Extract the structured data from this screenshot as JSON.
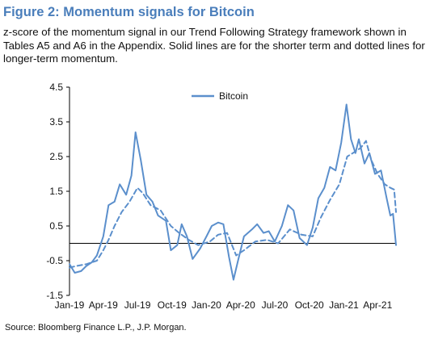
{
  "figure": {
    "title": "Figure 2: Momentum signals for Bitcoin",
    "subtitle": "z-score of the momentum signal in our Trend Following Strategy framework shown in Tables A5 and A6 in the Appendix. Solid lines are for the shorter term and dotted lines for longer-term momentum.",
    "source": "Source: Bloomberg Finance L.P., J.P. Morgan."
  },
  "colors": {
    "series": "#5b8fcc",
    "axis": "#000000",
    "title": "#4a7ebb"
  },
  "chart_data": {
    "type": "line",
    "title": "Figure 2: Momentum signals for Bitcoin",
    "xlabel": "",
    "ylabel": "",
    "ylim": [
      -1.5,
      4.5
    ],
    "yticks": [
      "4.5",
      "3.5",
      "2.5",
      "1.5",
      "0.5",
      "-0.5",
      "-1.5"
    ],
    "ytick_values": [
      4.5,
      3.5,
      2.5,
      1.5,
      0.5,
      -0.5,
      -1.5
    ],
    "xticks": [
      "Jan-19",
      "Apr-19",
      "Jul-19",
      "Oct-19",
      "Jan-20",
      "Apr-20",
      "Jul-20",
      "Oct-20",
      "Jan-21",
      "Apr-21"
    ],
    "xtick_values": [
      "2019-01-01",
      "2019-04-01",
      "2019-07-01",
      "2019-10-01",
      "2020-01-01",
      "2020-04-01",
      "2020-07-01",
      "2020-10-01",
      "2021-01-01",
      "2021-04-01"
    ],
    "xlim": [
      "2019-01-01",
      "2021-05-20"
    ],
    "grid": false,
    "legend": {
      "position": "top",
      "entries": [
        "Bitcoin"
      ]
    },
    "series": [
      {
        "name": "Bitcoin",
        "style": "solid",
        "points": [
          [
            "2019-01-01",
            -0.6
          ],
          [
            "2019-01-15",
            -0.85
          ],
          [
            "2019-02-01",
            -0.8
          ],
          [
            "2019-02-15",
            -0.65
          ],
          [
            "2019-03-01",
            -0.55
          ],
          [
            "2019-03-15",
            -0.35
          ],
          [
            "2019-04-01",
            0.2
          ],
          [
            "2019-04-15",
            1.1
          ],
          [
            "2019-05-01",
            1.2
          ],
          [
            "2019-05-15",
            1.7
          ],
          [
            "2019-06-01",
            1.4
          ],
          [
            "2019-06-15",
            1.95
          ],
          [
            "2019-06-26",
            3.2
          ],
          [
            "2019-07-10",
            2.4
          ],
          [
            "2019-07-25",
            1.4
          ],
          [
            "2019-08-10",
            1.2
          ],
          [
            "2019-08-25",
            0.8
          ],
          [
            "2019-09-15",
            0.65
          ],
          [
            "2019-09-28",
            -0.2
          ],
          [
            "2019-10-15",
            -0.05
          ],
          [
            "2019-10-27",
            0.55
          ],
          [
            "2019-11-10",
            0.2
          ],
          [
            "2019-11-25",
            -0.45
          ],
          [
            "2019-12-15",
            -0.15
          ],
          [
            "2020-01-01",
            0.2
          ],
          [
            "2020-01-15",
            0.5
          ],
          [
            "2020-02-01",
            0.6
          ],
          [
            "2020-02-15",
            0.55
          ],
          [
            "2020-03-01",
            -0.4
          ],
          [
            "2020-03-13",
            -1.05
          ],
          [
            "2020-03-25",
            -0.5
          ],
          [
            "2020-04-10",
            0.2
          ],
          [
            "2020-05-01",
            0.4
          ],
          [
            "2020-05-15",
            0.55
          ],
          [
            "2020-06-01",
            0.3
          ],
          [
            "2020-06-15",
            0.35
          ],
          [
            "2020-07-01",
            0.05
          ],
          [
            "2020-07-20",
            0.5
          ],
          [
            "2020-08-05",
            1.1
          ],
          [
            "2020-08-20",
            0.95
          ],
          [
            "2020-09-05",
            0.15
          ],
          [
            "2020-09-25",
            -0.05
          ],
          [
            "2020-10-10",
            0.45
          ],
          [
            "2020-10-25",
            1.3
          ],
          [
            "2020-11-10",
            1.6
          ],
          [
            "2020-11-25",
            2.2
          ],
          [
            "2020-12-10",
            2.1
          ],
          [
            "2020-12-25",
            2.9
          ],
          [
            "2021-01-08",
            4.0
          ],
          [
            "2021-01-20",
            3.0
          ],
          [
            "2021-02-01",
            2.6
          ],
          [
            "2021-02-10",
            3.0
          ],
          [
            "2021-02-25",
            2.3
          ],
          [
            "2021-03-10",
            2.6
          ],
          [
            "2021-03-25",
            2.0
          ],
          [
            "2021-04-10",
            2.1
          ],
          [
            "2021-04-25",
            1.3
          ],
          [
            "2021-05-05",
            0.8
          ],
          [
            "2021-05-12",
            0.85
          ],
          [
            "2021-05-20",
            -0.05
          ]
        ]
      },
      {
        "name": "",
        "style": "dashed",
        "points": [
          [
            "2019-01-01",
            -0.7
          ],
          [
            "2019-01-20",
            -0.65
          ],
          [
            "2019-02-15",
            -0.6
          ],
          [
            "2019-03-15",
            -0.5
          ],
          [
            "2019-04-01",
            -0.2
          ],
          [
            "2019-04-15",
            0.1
          ],
          [
            "2019-05-01",
            0.5
          ],
          [
            "2019-05-20",
            0.9
          ],
          [
            "2019-06-10",
            1.2
          ],
          [
            "2019-07-01",
            1.6
          ],
          [
            "2019-07-15",
            1.45
          ],
          [
            "2019-08-05",
            1.1
          ],
          [
            "2019-09-01",
            0.95
          ],
          [
            "2019-09-28",
            0.5
          ],
          [
            "2019-10-20",
            0.3
          ],
          [
            "2019-11-15",
            0.1
          ],
          [
            "2019-12-10",
            -0.05
          ],
          [
            "2020-01-10",
            0.05
          ],
          [
            "2020-02-01",
            0.25
          ],
          [
            "2020-02-25",
            0.3
          ],
          [
            "2020-03-20",
            -0.35
          ],
          [
            "2020-04-10",
            -0.2
          ],
          [
            "2020-05-10",
            0.05
          ],
          [
            "2020-06-10",
            0.1
          ],
          [
            "2020-07-10",
            0.0
          ],
          [
            "2020-08-10",
            0.4
          ],
          [
            "2020-09-10",
            0.25
          ],
          [
            "2020-10-10",
            0.2
          ],
          [
            "2020-11-01",
            0.75
          ],
          [
            "2020-11-25",
            1.25
          ],
          [
            "2020-12-20",
            1.7
          ],
          [
            "2021-01-10",
            2.5
          ],
          [
            "2021-01-25",
            2.6
          ],
          [
            "2021-02-15",
            2.75
          ],
          [
            "2021-03-01",
            2.95
          ],
          [
            "2021-03-15",
            2.4
          ],
          [
            "2021-04-01",
            2.0
          ],
          [
            "2021-04-20",
            1.7
          ],
          [
            "2021-05-05",
            1.6
          ],
          [
            "2021-05-15",
            1.55
          ],
          [
            "2021-05-20",
            0.9
          ]
        ]
      }
    ]
  }
}
